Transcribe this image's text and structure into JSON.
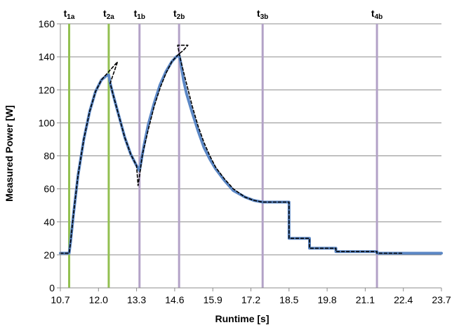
{
  "chart_data": {
    "type": "line",
    "title": "",
    "xlabel": "Runtime [s]",
    "ylabel": "Measured Power [W]",
    "xlim": [
      10.7,
      23.7
    ],
    "ylim": [
      0,
      160
    ],
    "grid": true,
    "x_ticks": [
      "10.7",
      "12.0",
      "13.3",
      "14.6",
      "15.9",
      "17.2",
      "18.5",
      "19.8",
      "21.1",
      "22.4",
      "23.7"
    ],
    "y_ticks": [
      0,
      20,
      40,
      60,
      80,
      100,
      120,
      140,
      160
    ],
    "vertical_markers": [
      {
        "label": "t",
        "sub": "1a",
        "x": 11.0,
        "color": "#92c050"
      },
      {
        "label": "t",
        "sub": "2a",
        "x": 12.35,
        "color": "#92c050"
      },
      {
        "label": "t",
        "sub": "1b",
        "x": 13.4,
        "color": "#b3a2c7"
      },
      {
        "label": "t",
        "sub": "2b",
        "x": 14.75,
        "color": "#b3a2c7"
      },
      {
        "label": "t",
        "sub": "3b",
        "x": 17.6,
        "color": "#b3a2c7"
      },
      {
        "label": "t",
        "sub": "4b",
        "x": 21.5,
        "color": "#b3a2c7"
      }
    ],
    "series": [
      {
        "style": "solid",
        "color": "#5b87c5",
        "x": [
          10.7,
          10.95,
          11.0,
          11.05,
          11.15,
          11.3,
          11.5,
          11.7,
          11.9,
          12.1,
          12.3,
          12.35,
          12.4,
          12.5,
          12.7,
          12.9,
          13.1,
          13.3,
          13.4,
          13.45,
          13.55,
          13.7,
          13.9,
          14.1,
          14.3,
          14.5,
          14.65,
          14.75,
          14.8,
          14.9,
          15.0,
          15.2,
          15.4,
          15.6,
          15.8,
          16.0,
          16.3,
          16.6,
          17.0,
          17.3,
          17.6,
          18.0,
          18.5,
          18.5,
          19.2,
          19.2,
          20.1,
          20.1,
          21.1,
          21.1,
          21.5,
          21.5,
          22.4,
          23.0,
          23.7
        ],
        "y": [
          21,
          21,
          21,
          28,
          45,
          68,
          90,
          107,
          119,
          126,
          129,
          129,
          124,
          117,
          104,
          91,
          81,
          74,
          71,
          76,
          86,
          99,
          112,
          123,
          131,
          137,
          140,
          141,
          137,
          126,
          118,
          106,
          95,
          85,
          78,
          72,
          65,
          59,
          55,
          53,
          52,
          52,
          52,
          30,
          30,
          24,
          24,
          22,
          22,
          22,
          22,
          21,
          21,
          21,
          21
        ]
      },
      {
        "style": "dashed",
        "color": "#000000",
        "x": [
          10.7,
          10.95,
          11.0,
          11.05,
          11.15,
          11.3,
          11.5,
          11.7,
          11.9,
          12.1,
          12.3,
          12.5,
          12.65,
          12.4,
          12.5,
          12.7,
          12.9,
          13.1,
          13.3,
          13.35,
          13.4,
          13.5,
          13.7,
          13.9,
          14.1,
          14.3,
          14.5,
          14.7,
          14.9,
          15.05,
          14.7,
          14.8,
          15.0,
          15.2,
          15.4,
          15.6,
          15.8,
          16.0,
          16.3,
          16.6,
          17.0,
          17.3,
          17.6,
          18.0,
          18.5,
          18.5,
          19.2,
          19.2,
          20.1,
          20.1,
          21.1,
          21.1,
          21.5,
          21.5,
          22.4
        ],
        "y": [
          21,
          21,
          21,
          28,
          45,
          68,
          90,
          107,
          119,
          126,
          130,
          134,
          137,
          124,
          117,
          104,
          91,
          81,
          74,
          62,
          68,
          81,
          96,
          110,
          121,
          130,
          137,
          141,
          144,
          147,
          147,
          138,
          124,
          110,
          98,
          88,
          80,
          73,
          66,
          60,
          55,
          53,
          52,
          52,
          52,
          30,
          30,
          24,
          24,
          22,
          22,
          22,
          22,
          21,
          21
        ]
      }
    ]
  }
}
